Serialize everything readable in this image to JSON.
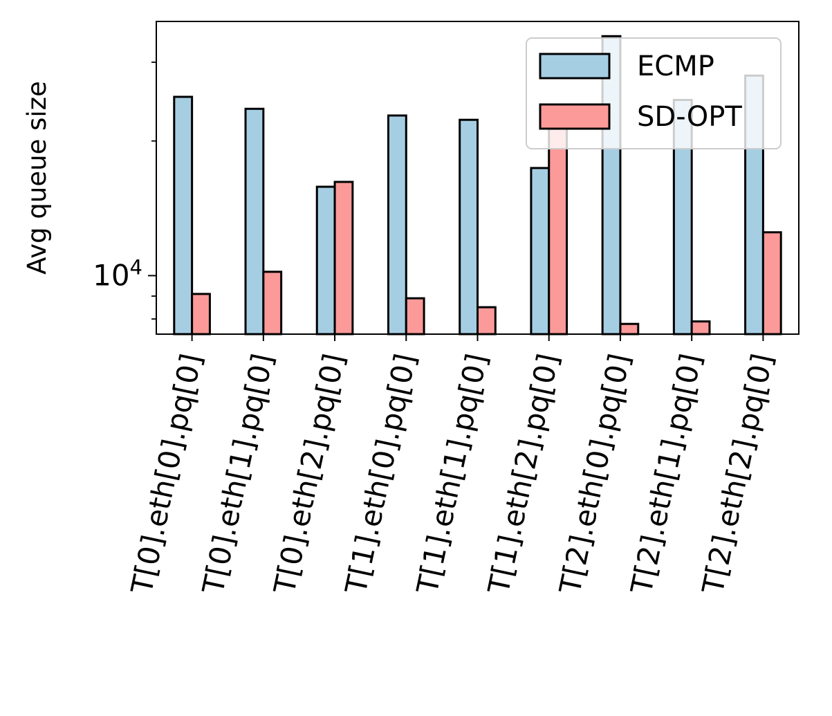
{
  "chart_data": {
    "type": "bar",
    "title": "",
    "xlabel": "",
    "ylabel": "Avg queue size",
    "yscale": "log",
    "ylim": [
      7400,
      37000
    ],
    "yticks": [
      {
        "base": "10",
        "exp": "4",
        "value": 10000
      }
    ],
    "categories": [
      "T[0].eth[0].pq[0]",
      "T[0].eth[1].pq[0]",
      "T[0].eth[2].pq[0]",
      "T[1].eth[0].pq[0]",
      "T[1].eth[1].pq[0]",
      "T[1].eth[2].pq[0]",
      "T[2].eth[0].pq[0]",
      "T[2].eth[1].pq[0]",
      "T[2].eth[2].pq[0]"
    ],
    "series": [
      {
        "name": "ECMP",
        "color": "#a6cee3",
        "values": [
          25100,
          23600,
          15800,
          22800,
          22300,
          17400,
          34300,
          24700,
          28000
        ]
      },
      {
        "name": "SD-OPT",
        "color": "#fb9a99",
        "values": [
          9100,
          10200,
          16200,
          8900,
          8500,
          23500,
          7800,
          7900,
          12500
        ]
      }
    ],
    "legend": "top-right",
    "grid": false
  }
}
